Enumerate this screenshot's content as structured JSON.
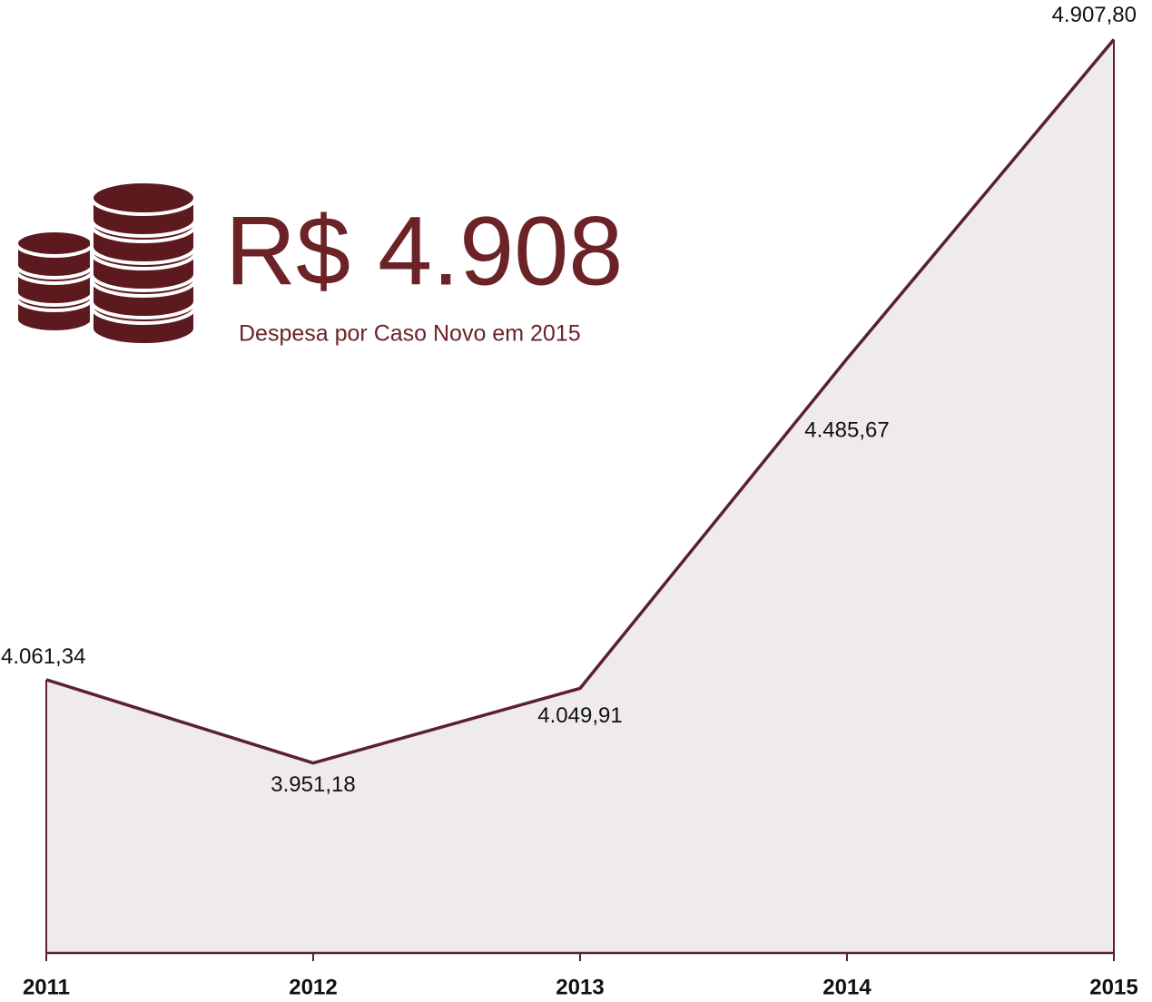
{
  "chart_data": {
    "type": "area",
    "headline": "R$ 4.908",
    "subtitle": "Despesa por Caso Novo em 2015",
    "categories": [
      "2011",
      "2012",
      "2013",
      "2014",
      "2015"
    ],
    "values": [
      4061.34,
      3951.18,
      4049.91,
      4485.67,
      4907.8
    ],
    "value_labels": [
      "4.061,34",
      "3.951,18",
      "4.049,91",
      "4.485,67",
      "4.907,80"
    ],
    "color": "#5a1f3a",
    "fill": "#efebeb",
    "ylim": [
      3700,
      4960
    ]
  }
}
